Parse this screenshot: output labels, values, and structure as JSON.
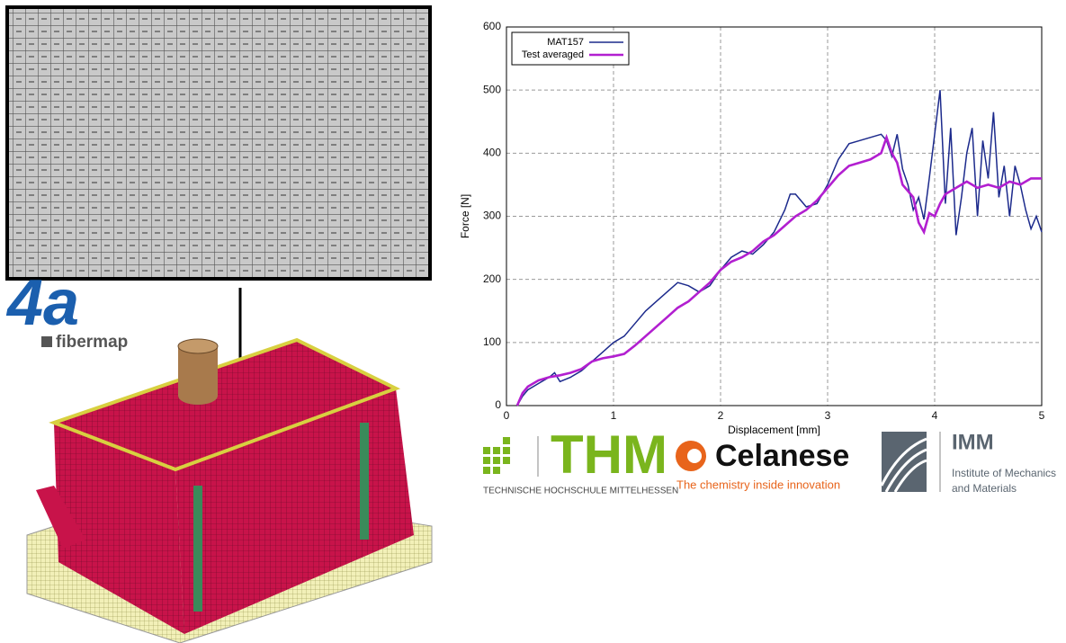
{
  "chart_data": {
    "type": "line",
    "xlabel": "Displacement [mm]",
    "ylabel": "Force [N]",
    "xlim": [
      0,
      5
    ],
    "xticks": [
      0,
      1,
      2,
      3,
      4,
      5
    ],
    "ylim": [
      0,
      600
    ],
    "yticks": [
      0,
      100,
      200,
      300,
      400,
      500,
      600
    ],
    "grid": true,
    "legend": "upper-left",
    "series": [
      {
        "name": "MAT157",
        "color": "#1c2a8c",
        "x": [
          0.1,
          0.15,
          0.2,
          0.3,
          0.4,
          0.45,
          0.5,
          0.6,
          0.7,
          0.8,
          0.9,
          1.0,
          1.1,
          1.2,
          1.3,
          1.4,
          1.5,
          1.6,
          1.7,
          1.8,
          1.9,
          2.0,
          2.1,
          2.2,
          2.3,
          2.4,
          2.5,
          2.6,
          2.65,
          2.7,
          2.8,
          2.9,
          3.0,
          3.1,
          3.2,
          3.3,
          3.4,
          3.5,
          3.55,
          3.6,
          3.65,
          3.7,
          3.75,
          3.8,
          3.85,
          3.9,
          3.95,
          4.0,
          4.05,
          4.1,
          4.15,
          4.2,
          4.25,
          4.3,
          4.35,
          4.4,
          4.45,
          4.5,
          4.55,
          4.6,
          4.65,
          4.7,
          4.75,
          4.8,
          4.85,
          4.9,
          4.95,
          5.0
        ],
        "values": [
          0,
          15,
          25,
          35,
          45,
          52,
          38,
          45,
          55,
          70,
          85,
          100,
          110,
          130,
          150,
          165,
          180,
          195,
          190,
          180,
          190,
          215,
          235,
          245,
          240,
          255,
          275,
          310,
          335,
          335,
          315,
          320,
          350,
          390,
          415,
          420,
          425,
          430,
          420,
          395,
          430,
          375,
          350,
          310,
          330,
          295,
          360,
          430,
          500,
          320,
          440,
          270,
          330,
          400,
          440,
          300,
          420,
          360,
          465,
          330,
          380,
          300,
          380,
          350,
          310,
          280,
          300,
          275
        ]
      },
      {
        "name": "Test averaged",
        "color": "#b21fd0",
        "x": [
          0.1,
          0.15,
          0.2,
          0.3,
          0.4,
          0.5,
          0.6,
          0.7,
          0.8,
          0.9,
          1.0,
          1.1,
          1.2,
          1.3,
          1.4,
          1.5,
          1.6,
          1.7,
          1.8,
          1.9,
          2.0,
          2.1,
          2.2,
          2.3,
          2.4,
          2.5,
          2.6,
          2.7,
          2.8,
          2.9,
          3.0,
          3.1,
          3.2,
          3.3,
          3.4,
          3.5,
          3.55,
          3.6,
          3.65,
          3.7,
          3.75,
          3.8,
          3.85,
          3.9,
          3.95,
          4.0,
          4.05,
          4.1,
          4.2,
          4.3,
          4.4,
          4.5,
          4.6,
          4.7,
          4.8,
          4.9,
          5.0
        ],
        "values": [
          0,
          20,
          30,
          40,
          45,
          48,
          52,
          58,
          70,
          75,
          78,
          82,
          95,
          110,
          125,
          140,
          155,
          165,
          180,
          195,
          215,
          228,
          235,
          245,
          260,
          270,
          285,
          300,
          310,
          325,
          345,
          365,
          380,
          385,
          390,
          400,
          425,
          400,
          385,
          350,
          340,
          330,
          290,
          275,
          305,
          300,
          320,
          335,
          345,
          355,
          345,
          350,
          345,
          355,
          350,
          360,
          360
        ]
      }
    ]
  },
  "logos": {
    "fibermap": {
      "mark": "4a",
      "name": "fibermap"
    },
    "thm": {
      "name": "THM",
      "subtitle": "TECHNISCHE HOCHSCHULE MITTELHESSEN"
    },
    "celanese": {
      "name": "Celanese",
      "tagline": "The chemistry inside innovation"
    },
    "imm": {
      "name": "IMM",
      "line1": "Institute of Mechanics",
      "line2": "and Materials"
    }
  }
}
